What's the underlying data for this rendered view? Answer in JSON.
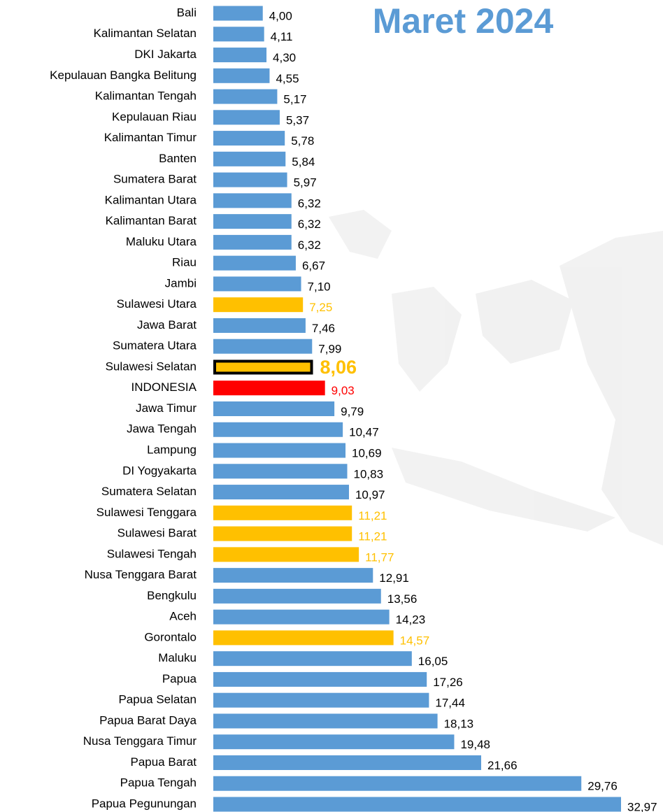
{
  "chart_data": {
    "type": "bar",
    "orientation": "horizontal",
    "title": "Maret 2024",
    "title_color": "#5b9bd5",
    "categories": [
      "Bali",
      "Kalimantan Selatan",
      "DKI Jakarta",
      "Kepulauan Bangka Belitung",
      "Kalimantan Tengah",
      "Kepulauan Riau",
      "Kalimantan Timur",
      "Banten",
      "Sumatera Barat",
      "Kalimantan Utara",
      "Kalimantan Barat",
      "Maluku Utara",
      "Riau",
      "Jambi",
      "Sulawesi Utara",
      "Jawa Barat",
      "Sumatera Utara",
      "Sulawesi Selatan",
      "INDONESIA",
      "Jawa Timur",
      "Jawa Tengah",
      "Lampung",
      "DI Yogyakarta",
      "Sumatera Selatan",
      "Sulawesi Tenggara",
      "Sulawesi Barat",
      "Sulawesi Tengah",
      "Nusa Tenggara Barat",
      "Bengkulu",
      "Aceh",
      "Gorontalo",
      "Maluku",
      "Papua",
      "Papua Selatan",
      "Papua Barat Daya",
      "Nusa Tenggara Timur",
      "Papua Barat",
      "Papua Tengah",
      "Papua Pegunungan"
    ],
    "values": [
      4.0,
      4.11,
      4.3,
      4.55,
      5.17,
      5.37,
      5.78,
      5.84,
      5.97,
      6.32,
      6.32,
      6.32,
      6.67,
      7.1,
      7.25,
      7.46,
      7.99,
      8.06,
      9.03,
      9.79,
      10.47,
      10.69,
      10.83,
      10.97,
      11.21,
      11.21,
      11.77,
      12.91,
      13.56,
      14.23,
      14.57,
      16.05,
      17.26,
      17.44,
      18.13,
      19.48,
      21.66,
      29.76,
      32.97
    ],
    "value_labels": [
      "4,00",
      "4,11",
      "4,30",
      "4,55",
      "5,17",
      "5,37",
      "5,78",
      "5,84",
      "5,97",
      "6,32",
      "6,32",
      "6,32",
      "6,67",
      "7,10",
      "7,25",
      "7,46",
      "7,99",
      "8,06",
      "9,03",
      "9,79",
      "10,47",
      "10,69",
      "10,83",
      "10,97",
      "11,21",
      "11,21",
      "11,77",
      "12,91",
      "13,56",
      "14,23",
      "14,57",
      "16,05",
      "17,26",
      "17,44",
      "18,13",
      "19,48",
      "21,66",
      "29,76",
      "32,97"
    ],
    "colors": [
      "#5b9bd5",
      "#5b9bd5",
      "#5b9bd5",
      "#5b9bd5",
      "#5b9bd5",
      "#5b9bd5",
      "#5b9bd5",
      "#5b9bd5",
      "#5b9bd5",
      "#5b9bd5",
      "#5b9bd5",
      "#5b9bd5",
      "#5b9bd5",
      "#5b9bd5",
      "#ffc000",
      "#5b9bd5",
      "#5b9bd5",
      "#ffc000",
      "#ff0000",
      "#5b9bd5",
      "#5b9bd5",
      "#5b9bd5",
      "#5b9bd5",
      "#5b9bd5",
      "#ffc000",
      "#ffc000",
      "#ffc000",
      "#5b9bd5",
      "#5b9bd5",
      "#5b9bd5",
      "#ffc000",
      "#5b9bd5",
      "#5b9bd5",
      "#5b9bd5",
      "#5b9bd5",
      "#5b9bd5",
      "#5b9bd5",
      "#5b9bd5",
      "#5b9bd5"
    ],
    "label_colors": [
      "#000000",
      "#000000",
      "#000000",
      "#000000",
      "#000000",
      "#000000",
      "#000000",
      "#000000",
      "#000000",
      "#000000",
      "#000000",
      "#000000",
      "#000000",
      "#000000",
      "#ffc000",
      "#000000",
      "#000000",
      "#ffc000",
      "#ff0000",
      "#000000",
      "#000000",
      "#000000",
      "#000000",
      "#000000",
      "#ffc000",
      "#ffc000",
      "#ffc000",
      "#000000",
      "#000000",
      "#000000",
      "#ffc000",
      "#000000",
      "#000000",
      "#000000",
      "#000000",
      "#000000",
      "#000000",
      "#000000",
      "#000000"
    ],
    "highlight": 17
  }
}
